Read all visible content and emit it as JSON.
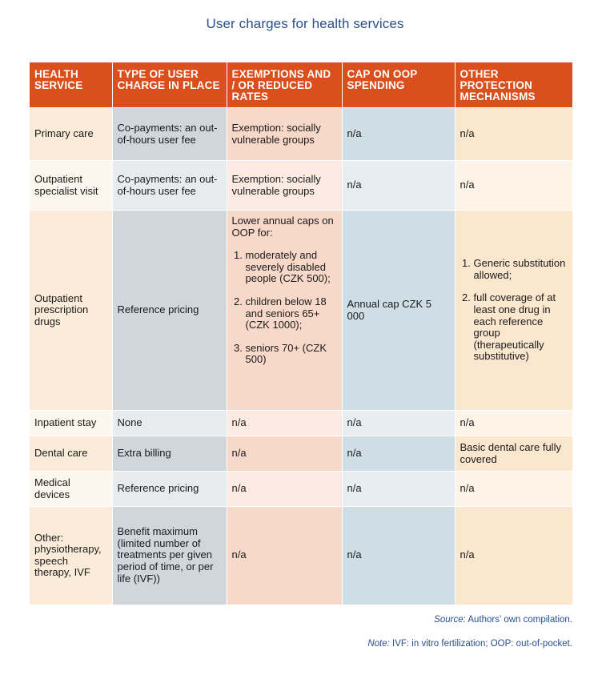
{
  "title": "User charges for health services",
  "headers": [
    "HEALTH SERVICE",
    "TYPE OF USER CHARGE IN PLACE",
    "EXEMPTIONS AND / OR REDUCED RATES",
    "CAP ON OOP SPENDING",
    "OTHER PROTECTION MECHANISMS"
  ],
  "rows": [
    {
      "service": "Primary care",
      "charge": "Co-payments: an out-of-hours user fee",
      "exemptions": "Exemption: socially vulnerable groups",
      "cap": "n/a",
      "other": "n/a"
    },
    {
      "service": "Outpatient specialist visit",
      "charge": "Co-payments: an out-of-hours user fee",
      "exemptions": "Exemption: socially vulnerable groups",
      "cap": "n/a",
      "other": "n/a"
    },
    {
      "service": "Outpatient prescription drugs",
      "charge": "Reference pricing",
      "exemptions_lead": "Lower annual caps on OOP for:",
      "exemptions_items": [
        "moderately and severely disabled people (CZK 500);",
        "children below 18 and seniors 65+ (CZK 1000);",
        "seniors 70+ (CZK 500)"
      ],
      "cap": "Annual cap CZK 5 000",
      "other_items": [
        "Generic substitution allowed;",
        "full coverage of at least one drug in each reference group (therapeutically substitutive)"
      ]
    },
    {
      "service": "Inpatient stay",
      "charge": "None",
      "exemptions": "n/a",
      "cap": "n/a",
      "other": "n/a"
    },
    {
      "service": "Dental care",
      "charge": "Extra billing",
      "exemptions": "n/a",
      "cap": "n/a",
      "other": "Basic dental care fully covered"
    },
    {
      "service": "Medical devices",
      "charge": "Reference pricing",
      "exemptions": "n/a",
      "cap": "n/a",
      "other": "n/a"
    },
    {
      "service": "Other: physiotherapy, speech therapy, IVF",
      "charge": "Benefit maximum (limited number of treatments per given period of time, or per life (IVF))",
      "exemptions": "n/a",
      "cap": "n/a",
      "other": "n/a"
    }
  ],
  "source_label": "Source:",
  "source_text": "Authors’ own compilation.",
  "note_label": "Note:",
  "note_text": "IVF: in vitro fertilization; OOP: out-of-pocket."
}
